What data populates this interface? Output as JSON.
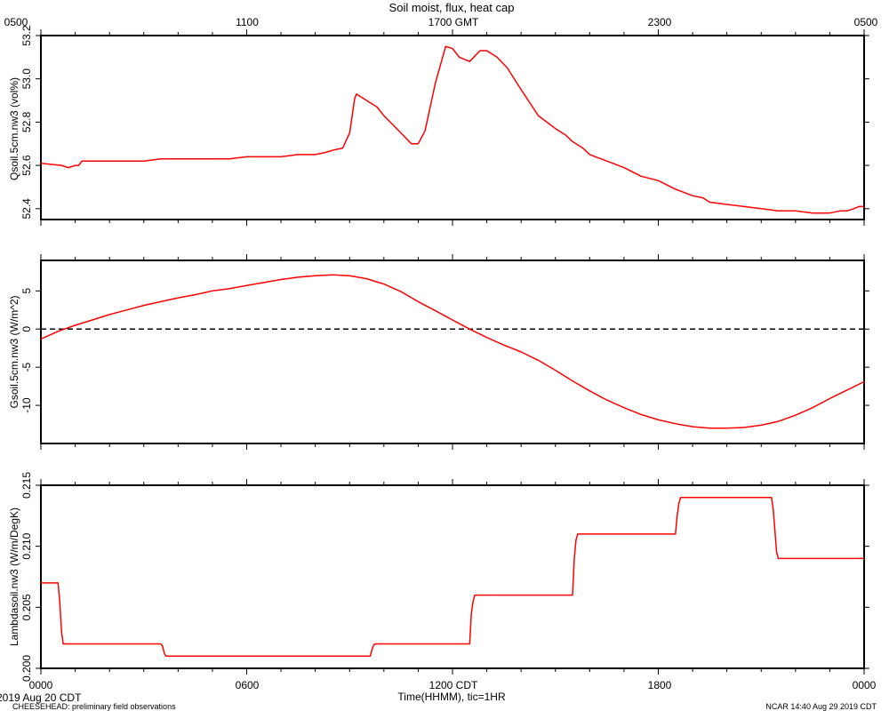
{
  "title": "Soil moist, flux, heat cap",
  "top_axis": {
    "tick_labels": [
      "0500",
      "1100",
      "1700 GMT",
      "2300",
      "0500"
    ]
  },
  "bottom_axis": {
    "tick_labels": [
      "0000",
      "0600",
      "1200 CDT",
      "1800",
      "0000"
    ],
    "xlabel": "Time(HHMM), tic=1HR"
  },
  "footer": {
    "date_label": "2019 Aug 20 CDT",
    "source_label": "CHEESEHEAD: preliminary field observations",
    "ncar_label": "NCAR 14:40 Aug 29 2019 CDT"
  },
  "colors": {
    "series": "#ff0000",
    "axes": "#000000",
    "zero_line": "#000000"
  },
  "chart_data": [
    {
      "type": "line",
      "ylabel": "Qsoil.5cm.nw3 (vol%)",
      "xlim": [
        0,
        24
      ],
      "ylim": [
        52.35,
        53.2
      ],
      "yticks": [
        "52.4",
        "52.6",
        "52.8",
        "53.0",
        "53.2"
      ],
      "grid": false,
      "series": [
        {
          "x": [
            0,
            0.6,
            0.8,
            1.0,
            1.1,
            1.2,
            1.5,
            2.0,
            3.0,
            3.5,
            4.0,
            5.0,
            5.5,
            6.0,
            6.5,
            7.0,
            7.5,
            8.0,
            8.3,
            8.5,
            8.8,
            9.0,
            9.15,
            9.2,
            9.3,
            9.5,
            9.8,
            10.0,
            10.5,
            10.8,
            11.0,
            11.2,
            11.5,
            11.8,
            12.0,
            12.2,
            12.5,
            12.8,
            13.0,
            13.3,
            13.6,
            14.0,
            14.5,
            15.0,
            15.3,
            15.5,
            15.8,
            16.0,
            16.5,
            17.0,
            17.5,
            18.0,
            18.5,
            19.0,
            19.3,
            19.5,
            20.0,
            20.5,
            21.0,
            21.5,
            22.0,
            22.5,
            22.8,
            23.0,
            23.3,
            23.5,
            23.7,
            23.85,
            24.0
          ],
          "values": [
            52.61,
            52.6,
            52.59,
            52.6,
            52.6,
            52.62,
            52.62,
            52.62,
            52.62,
            52.63,
            52.63,
            52.63,
            52.63,
            52.64,
            52.64,
            52.64,
            52.65,
            52.65,
            52.66,
            52.67,
            52.68,
            52.75,
            52.91,
            52.93,
            52.92,
            52.9,
            52.87,
            52.83,
            52.75,
            52.7,
            52.7,
            52.76,
            52.98,
            53.15,
            53.14,
            53.1,
            53.08,
            53.13,
            53.13,
            53.1,
            53.05,
            52.95,
            52.83,
            52.77,
            52.74,
            52.71,
            52.68,
            52.65,
            52.62,
            52.59,
            52.55,
            52.53,
            52.49,
            52.46,
            52.45,
            52.43,
            52.42,
            52.41,
            52.4,
            52.39,
            52.39,
            52.38,
            52.38,
            52.38,
            52.39,
            52.39,
            52.4,
            52.41,
            52.41
          ]
        }
      ]
    },
    {
      "type": "line",
      "ylabel": "Gsoil.5cm.nw3 (W/m^2)",
      "xlim": [
        0,
        24
      ],
      "ylim": [
        -15,
        9
      ],
      "yticks": [
        "-10",
        "-5",
        "0",
        "5"
      ],
      "grid": false,
      "reference_line": {
        "y": 0,
        "style": "dashed"
      },
      "series": [
        {
          "x": [
            0,
            0.5,
            1,
            1.5,
            2,
            2.5,
            3,
            3.5,
            4,
            4.5,
            5,
            5.5,
            6,
            6.5,
            7,
            7.5,
            8,
            8.5,
            9,
            9.5,
            10,
            10.5,
            11,
            11.5,
            12,
            12.5,
            13,
            13.5,
            14,
            14.5,
            15,
            15.5,
            16,
            16.5,
            17,
            17.5,
            18,
            18.5,
            19,
            19.5,
            20,
            20.5,
            21,
            21.5,
            22,
            22.5,
            23,
            23.5,
            24
          ],
          "values": [
            -1.3,
            -0.3,
            0.5,
            1.2,
            1.9,
            2.5,
            3.1,
            3.6,
            4.1,
            4.5,
            5.0,
            5.3,
            5.7,
            6.1,
            6.5,
            6.8,
            7.0,
            7.1,
            7.0,
            6.6,
            5.9,
            4.9,
            3.6,
            2.4,
            1.2,
            0.0,
            -1.1,
            -2.1,
            -3.0,
            -4.1,
            -5.4,
            -6.8,
            -8.1,
            -9.3,
            -10.3,
            -11.2,
            -11.9,
            -12.4,
            -12.8,
            -13.0,
            -13.0,
            -12.9,
            -12.6,
            -12.1,
            -11.3,
            -10.3,
            -9.1,
            -8.0,
            -6.9
          ]
        }
      ]
    },
    {
      "type": "line",
      "ylabel": "Lambdasoil.nw3 (W/m/DegK)",
      "xlim": [
        0,
        24
      ],
      "ylim": [
        0.2,
        0.215
      ],
      "yticks": [
        "0.200",
        "0.205",
        "0.210",
        "0.215"
      ],
      "grid": false,
      "series": [
        {
          "x": [
            0,
            0.5,
            0.55,
            0.6,
            0.65,
            3.5,
            3.55,
            3.6,
            3.65,
            9.6,
            9.65,
            9.7,
            9.75,
            12.5,
            12.55,
            12.6,
            12.65,
            15.5,
            15.55,
            15.6,
            15.65,
            18.5,
            18.55,
            18.6,
            18.65,
            21.3,
            21.35,
            21.45,
            21.5,
            24
          ],
          "values": [
            0.207,
            0.207,
            0.2055,
            0.203,
            0.202,
            0.202,
            0.2018,
            0.2012,
            0.201,
            0.201,
            0.2015,
            0.2019,
            0.202,
            0.202,
            0.2045,
            0.2055,
            0.206,
            0.206,
            0.209,
            0.2105,
            0.211,
            0.211,
            0.2125,
            0.2135,
            0.214,
            0.214,
            0.213,
            0.2095,
            0.209,
            0.209
          ]
        }
      ]
    }
  ]
}
